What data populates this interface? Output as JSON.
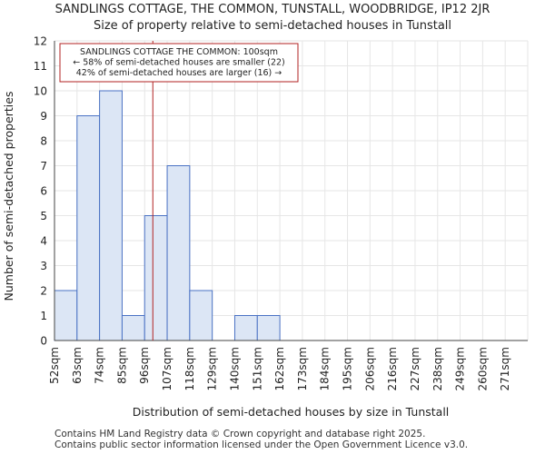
{
  "header": {
    "title": "SANDLINGS COTTAGE, THE COMMON, TUNSTALL, WOODBRIDGE, IP12 2JR",
    "subtitle": "Size of property relative to semi-detached houses in Tunstall"
  },
  "footer": {
    "line1": "Contains HM Land Registry data © Crown copyright and database right 2025.",
    "line2": "Contains public sector information licensed under the Open Government Licence v3.0."
  },
  "colors": {
    "bar_fill": "#dce6f5",
    "bar_stroke": "#4a72c4",
    "marker": "#b22222",
    "grid": "#e6e6e6"
  },
  "chart_data": {
    "type": "bar",
    "title": "SANDLINGS COTTAGE, THE COMMON, TUNSTALL, WOODBRIDGE, IP12 2JR",
    "subtitle": "Size of property relative to semi-detached houses in Tunstall",
    "xlabel": "Distribution of semi-detached houses by size in Tunstall",
    "ylabel": "Number of semi-detached properties",
    "categories": [
      "52sqm",
      "63sqm",
      "74sqm",
      "85sqm",
      "96sqm",
      "107sqm",
      "118sqm",
      "129sqm",
      "140sqm",
      "151sqm",
      "162sqm",
      "173sqm",
      "184sqm",
      "195sqm",
      "206sqm",
      "216sqm",
      "227sqm",
      "238sqm",
      "249sqm",
      "260sqm",
      "271sqm"
    ],
    "values": [
      2,
      9,
      10,
      1,
      5,
      7,
      2,
      0,
      1,
      1,
      0,
      0,
      0,
      0,
      0,
      0,
      0,
      0,
      0,
      0,
      0
    ],
    "ylim": [
      0,
      12
    ],
    "yticks": [
      0,
      1,
      2,
      3,
      4,
      5,
      6,
      7,
      8,
      9,
      10,
      11,
      12
    ],
    "grid": true,
    "marker": {
      "value_sqm": 100,
      "label_lines": [
        "SANDLINGS COTTAGE THE COMMON: 100sqm",
        "← 58% of semi-detached houses are smaller (22)",
        "42% of semi-detached houses are larger (16) →"
      ]
    }
  }
}
